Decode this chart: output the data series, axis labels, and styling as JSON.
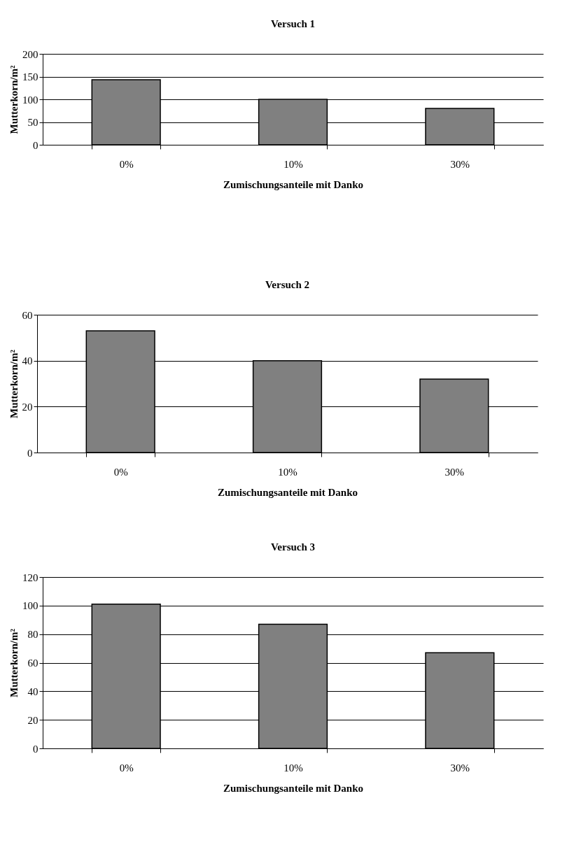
{
  "chart_data": [
    {
      "type": "bar",
      "title": "Versuch  1",
      "xlabel": "Zumischungsanteile  mit  Danko",
      "ylabel": "Mutterkorn/m²",
      "categories": [
        "0%",
        "10%",
        "30%"
      ],
      "values": [
        143,
        100,
        80
      ],
      "color": "#808080",
      "ylim": [
        0,
        200
      ],
      "yticks": [
        0,
        50,
        100,
        150,
        200
      ],
      "grid": "y"
    },
    {
      "type": "bar",
      "title": "Versuch  2",
      "xlabel": "Zumischungsanteile  mit  Danko",
      "ylabel": "Mutterkorn/m²",
      "categories": [
        "0%",
        "10%",
        "30%"
      ],
      "values": [
        53,
        40,
        32
      ],
      "color": "#808080",
      "ylim": [
        0,
        60
      ],
      "yticks": [
        0,
        20,
        40,
        60
      ],
      "grid": "y"
    },
    {
      "type": "bar",
      "title": "Versuch  3",
      "xlabel": "Zumischungsanteile  mit  Danko",
      "ylabel": "Mutterkorn/m²",
      "categories": [
        "0%",
        "10%",
        "30%"
      ],
      "values": [
        101,
        87,
        67
      ],
      "color": "#808080",
      "ylim": [
        0,
        120
      ],
      "yticks": [
        0,
        20,
        40,
        60,
        80,
        100,
        120
      ],
      "grid": "y"
    }
  ]
}
